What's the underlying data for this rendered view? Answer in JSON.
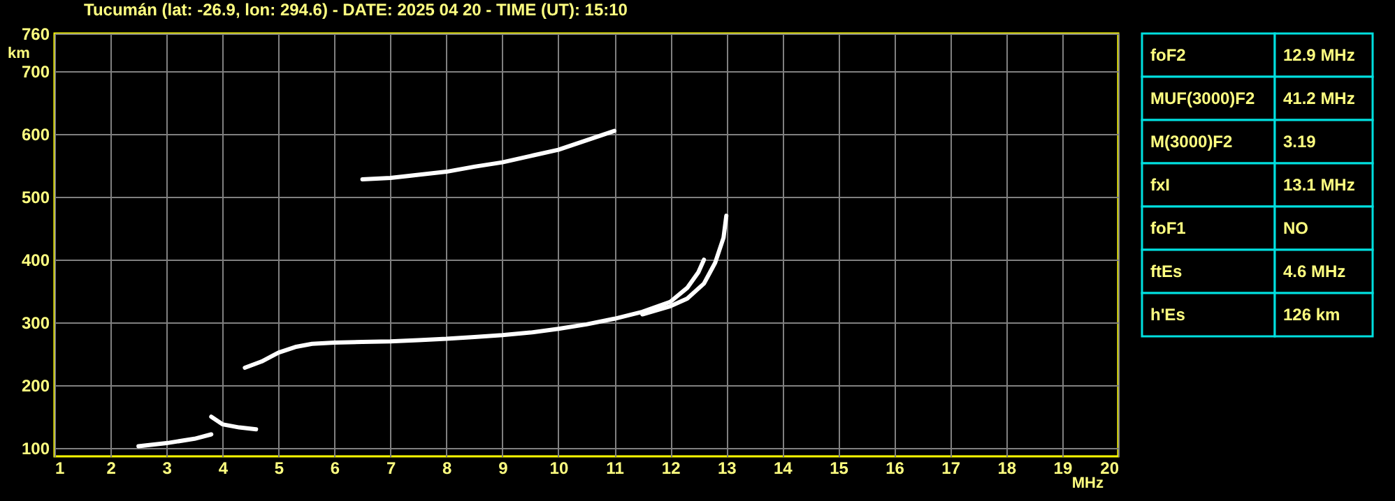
{
  "chart_data": [
    {
      "type": "line",
      "title": "Tucumán (lat: -26.9, lon: 294.6) - DATE: 2025 04 20 - TIME (UT): 15:10",
      "xlabel": "MHz",
      "ylabel": "km",
      "xlim": [
        1,
        20
      ],
      "ylim": [
        87,
        760
      ],
      "xticks": [
        1,
        2,
        3,
        4,
        5,
        6,
        7,
        8,
        9,
        10,
        11,
        12,
        13,
        14,
        15,
        16,
        17,
        18,
        19,
        20
      ],
      "yticks": [
        100,
        200,
        300,
        400,
        500,
        600,
        700,
        760
      ],
      "grid": true,
      "marker": "none",
      "line_style": "solid",
      "series": [
        {
          "color": "#ffffff",
          "x": [
            4.4,
            4.7,
            5.0,
            5.3,
            5.6,
            6.0,
            6.5,
            7.0,
            7.5,
            8.0,
            8.5,
            9.0,
            9.5,
            10.0,
            10.5,
            11.0,
            11.5,
            12.0,
            12.3,
            12.5,
            12.6
          ],
          "values": [
            228,
            238,
            252,
            261,
            266,
            268,
            269,
            270,
            272,
            274,
            277,
            280,
            284,
            290,
            297,
            306,
            317,
            333,
            355,
            380,
            400
          ]
        },
        {
          "color": "#ffffff",
          "x": [
            11.5,
            12.0,
            12.3,
            12.6,
            12.8,
            12.95,
            13.0
          ],
          "values": [
            313,
            326,
            338,
            362,
            395,
            435,
            470
          ]
        },
        {
          "color": "#ffffff",
          "x": [
            6.5,
            7.0,
            7.5,
            8.0,
            8.5,
            9.0,
            9.5,
            10.0,
            10.5,
            11.0
          ],
          "values": [
            528,
            530,
            535,
            540,
            548,
            555,
            565,
            575,
            590,
            605
          ]
        },
        {
          "color": "#ffffff",
          "x": [
            2.5,
            3.0,
            3.5,
            3.8
          ],
          "values": [
            103,
            108,
            115,
            122
          ]
        },
        {
          "color": "#ffffff",
          "x": [
            3.8,
            4.0,
            4.3,
            4.6
          ],
          "values": [
            150,
            138,
            133,
            130
          ]
        }
      ]
    },
    {
      "type": "other",
      "annotations": [
        "foF2",
        "12.9 MHz",
        "MUF(3000)F2",
        "41.2 MHz",
        "M(3000)F2",
        "3.19",
        "fxI",
        "13.1 MHz",
        "foF1",
        "NO",
        "ftEs",
        "4.6 MHz",
        "h'Es",
        "126 km"
      ]
    }
  ]
}
